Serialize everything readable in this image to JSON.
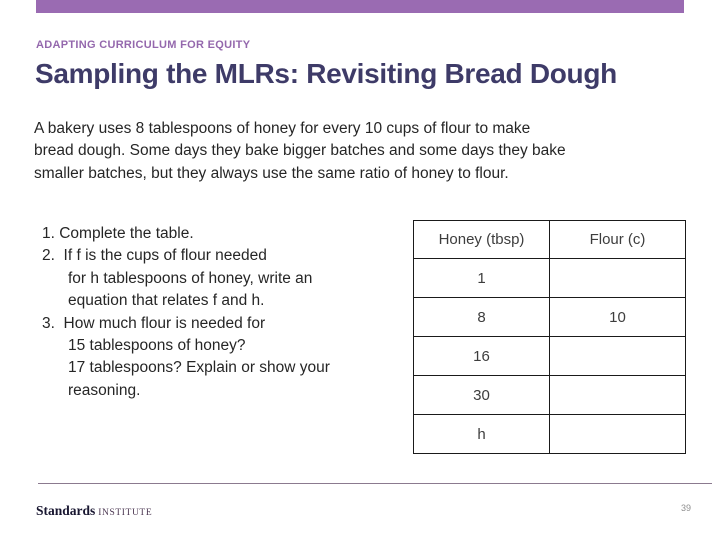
{
  "slide": {
    "kicker": "ADAPTING CURRICULUM FOR EQUITY",
    "title": "Sampling the MLRs: Revisiting Bread Dough",
    "body_lines": [
      "A bakery uses 8 tablespoons of honey for every 10 cups of flour to make",
      "bread dough. Some days they bake bigger batches and some days they bake",
      "smaller batches, but they always use the same ratio of honey to flour."
    ],
    "questions": [
      {
        "text": "1. Complete the table.",
        "indent": false
      },
      {
        "text": "2.  If f is the cups of flour needed",
        "indent": false
      },
      {
        "text": "for h tablespoons of honey, write an",
        "indent": true
      },
      {
        "text": "equation that relates f and h.",
        "indent": true
      },
      {
        "text": "3.  How much flour is needed for",
        "indent": false
      },
      {
        "text": "15 tablespoons of honey?",
        "indent": true
      },
      {
        "text": "17 tablespoons? Explain or show your",
        "indent": true
      },
      {
        "text": "reasoning.",
        "indent": true
      }
    ],
    "table": {
      "headers": [
        "Honey (tbsp)",
        "Flour (c)"
      ],
      "rows": [
        [
          "1",
          ""
        ],
        [
          "8",
          "10"
        ],
        [
          "16",
          ""
        ],
        [
          "30",
          ""
        ],
        [
          "h",
          ""
        ]
      ]
    },
    "footer": {
      "logo_primary": "Standards",
      "logo_secondary": "INSTITUTE",
      "page_number": "39"
    },
    "colors": {
      "accent_bar": "#9a6bb2",
      "kicker": "#9468ad",
      "title": "#3e3b68",
      "footer_line": "#8b7a8f"
    }
  }
}
